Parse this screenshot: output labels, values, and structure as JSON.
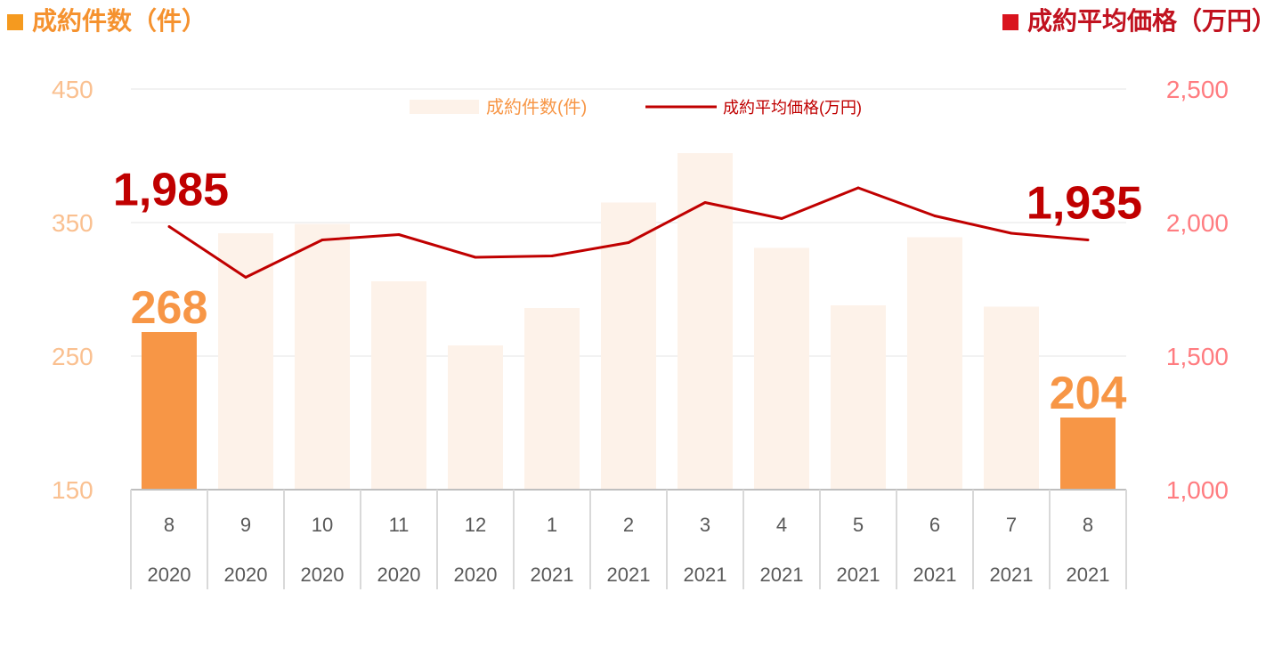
{
  "header": {
    "left_title": "成約件数（件）",
    "right_title": "成約平均価格（万円）"
  },
  "colors": {
    "bar_highlight": "#f79646",
    "bar_muted": "#fdf2e9",
    "line": "#c00000",
    "left_axis": "#fac090",
    "right_axis": "#ff7c80",
    "bar_label": "#f79646",
    "line_label": "#c00000"
  },
  "chart_data": {
    "type": "bar+line",
    "categories": [
      {
        "month": "8",
        "year": "2020"
      },
      {
        "month": "9",
        "year": "2020"
      },
      {
        "month": "10",
        "year": "2020"
      },
      {
        "month": "11",
        "year": "2020"
      },
      {
        "month": "12",
        "year": "2020"
      },
      {
        "month": "1",
        "year": "2021"
      },
      {
        "month": "2",
        "year": "2021"
      },
      {
        "month": "3",
        "year": "2021"
      },
      {
        "month": "4",
        "year": "2021"
      },
      {
        "month": "5",
        "year": "2021"
      },
      {
        "month": "6",
        "year": "2021"
      },
      {
        "month": "7",
        "year": "2021"
      },
      {
        "month": "8",
        "year": "2021"
      }
    ],
    "series": [
      {
        "name": "成約件数(件)",
        "type": "bar",
        "axis": "left",
        "values": [
          268,
          342,
          349,
          306,
          258,
          286,
          365,
          402,
          331,
          288,
          339,
          287,
          204
        ],
        "highlight_index": [
          0,
          12
        ]
      },
      {
        "name": "成約平均価格(万円)",
        "type": "line",
        "axis": "right",
        "values": [
          1985,
          1795,
          1935,
          1955,
          1870,
          1875,
          1925,
          2075,
          2015,
          2130,
          2025,
          1960,
          1935
        ]
      }
    ],
    "left_axis": {
      "range": [
        150,
        450
      ],
      "ticks": [
        "150",
        "250",
        "350",
        "450"
      ]
    },
    "right_axis": {
      "range": [
        1000,
        2500
      ],
      "ticks": [
        "1,000",
        "1,500",
        "2,000",
        "2,500"
      ]
    },
    "data_labels": [
      {
        "series": 0,
        "index": 0,
        "text": "268"
      },
      {
        "series": 0,
        "index": 12,
        "text": "204"
      },
      {
        "series": 1,
        "index": 0,
        "text": "1,985"
      },
      {
        "series": 1,
        "index": 12,
        "text": "1,935"
      }
    ],
    "legend": {
      "position": "top",
      "entries": [
        "成約件数(件)",
        "成約平均価格(万円)"
      ]
    },
    "grid": true
  }
}
